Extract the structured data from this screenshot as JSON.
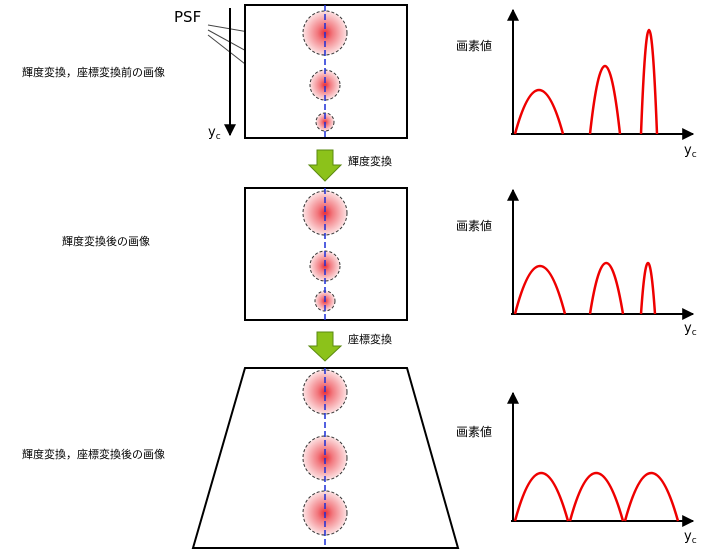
{
  "psf_label": "PSF",
  "axis_y": {
    "main": "y",
    "sub": "c"
  },
  "stages": [
    {
      "caption": "輝度変換，座標変換前の画像",
      "graph_ylabel": "画素値",
      "graph_xlabel": {
        "main": "y",
        "sub": "c"
      }
    },
    {
      "caption": "輝度変換後の画像",
      "graph_ylabel": "画素値",
      "graph_xlabel": {
        "main": "y",
        "sub": "c"
      }
    },
    {
      "caption": "輝度変換，座標変換後の画像",
      "graph_ylabel": "画素値",
      "graph_xlabel": {
        "main": "y",
        "sub": "c"
      }
    }
  ],
  "transforms": [
    "輝度変換",
    "座標変換"
  ]
}
